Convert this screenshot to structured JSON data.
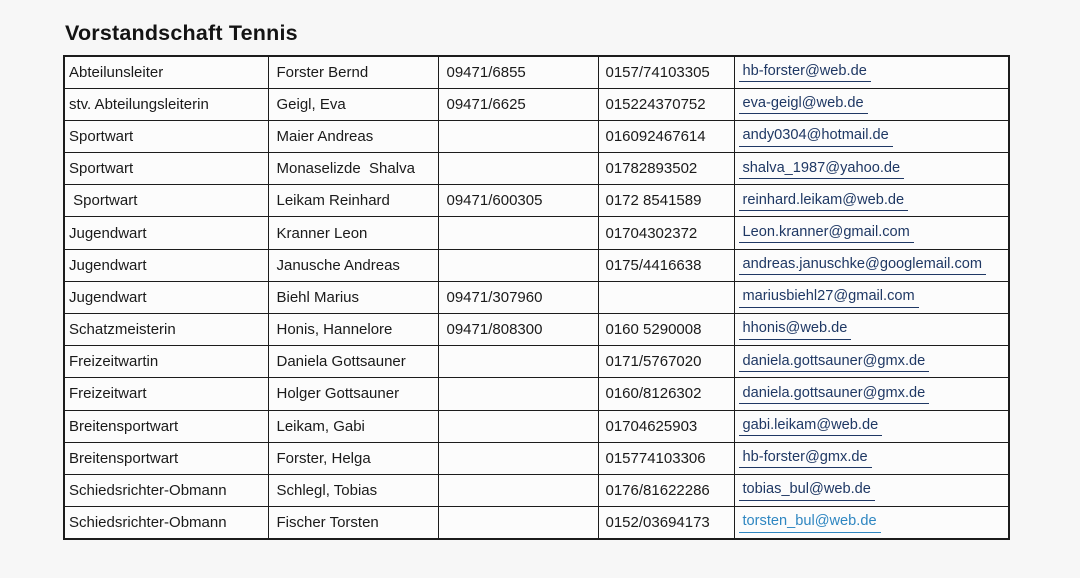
{
  "page": {
    "title": "Vorstandschaft Tennis"
  },
  "colors": {
    "email_link": "#1f3864",
    "email_link_alt": "#2e86c1",
    "table_border": "#1c1c1c",
    "page_background": "#f7f7f7"
  },
  "table": {
    "rows": [
      {
        "role": "Abteilunsleiter",
        "name": "Forster Bernd",
        "phone": "09471/6855",
        "mobile": "0157/74103305",
        "email": "hb-forster@web.de",
        "alt_color": false
      },
      {
        "role": "stv. Abteilungsleiterin",
        "name": "Geigl, Eva",
        "phone": "09471/6625",
        "mobile": "015224370752",
        "email": "eva-geigl@web.de",
        "alt_color": false
      },
      {
        "role": "Sportwart",
        "name": "Maier Andreas",
        "phone": "",
        "mobile": "016092467614",
        "email": "andy0304@hotmail.de",
        "alt_color": false
      },
      {
        "role": "Sportwart",
        "name": "Monaselizde  Shalva",
        "phone": "",
        "mobile": "01782893502",
        "email": "shalva_1987@yahoo.de",
        "alt_color": false
      },
      {
        "role": " Sportwart",
        "name": "Leikam Reinhard",
        "phone": "09471/600305",
        "mobile": "0172 8541589",
        "email": "reinhard.leikam@web.de",
        "alt_color": false
      },
      {
        "role": "Jugendwart",
        "name": "Kranner Leon",
        "phone": "",
        "mobile": "01704302372",
        "email": "Leon.kranner@gmail.com",
        "alt_color": false
      },
      {
        "role": "Jugendwart",
        "name": "Janusche Andreas",
        "phone": "",
        "mobile": "0175/4416638",
        "email": "andreas.januschke@googlemail.com",
        "alt_color": false
      },
      {
        "role": "Jugendwart",
        "name": "Biehl Marius",
        "phone": "09471/307960",
        "mobile": "",
        "email": "mariusbiehl27@gmail.com",
        "alt_color": false
      },
      {
        "role": "Schatzmeisterin",
        "name": "Honis, Hannelore",
        "phone": "09471/808300",
        "mobile": "0160 5290008",
        "email": "hhonis@web.de",
        "alt_color": false
      },
      {
        "role": "Freizeitwartin",
        "name": "Daniela Gottsauner",
        "phone": "",
        "mobile": "0171/5767020",
        "email": "daniela.gottsauner@gmx.de",
        "alt_color": false
      },
      {
        "role": "Freizeitwart",
        "name": "Holger Gottsauner",
        "phone": "",
        "mobile": "0160/8126302",
        "email": "daniela.gottsauner@gmx.de",
        "alt_color": false
      },
      {
        "role": "Breitensportwart",
        "name": "Leikam, Gabi",
        "phone": "",
        "mobile": "01704625903",
        "email": "gabi.leikam@web.de",
        "alt_color": false
      },
      {
        "role": "Breitensportwart",
        "name": "Forster, Helga",
        "phone": "",
        "mobile": "015774103306",
        "email": "hb-forster@gmx.de",
        "alt_color": false
      },
      {
        "role": "Schiedsrichter-Obmann",
        "name": "Schlegl, Tobias",
        "phone": "",
        "mobile": "0176/81622286",
        "email": "tobias_bul@web.de",
        "alt_color": false
      },
      {
        "role": "Schiedsrichter-Obmann",
        "name": "Fischer Torsten",
        "phone": "",
        "mobile": "0152/03694173",
        "email": "torsten_bul@web.de",
        "alt_color": true
      }
    ]
  }
}
